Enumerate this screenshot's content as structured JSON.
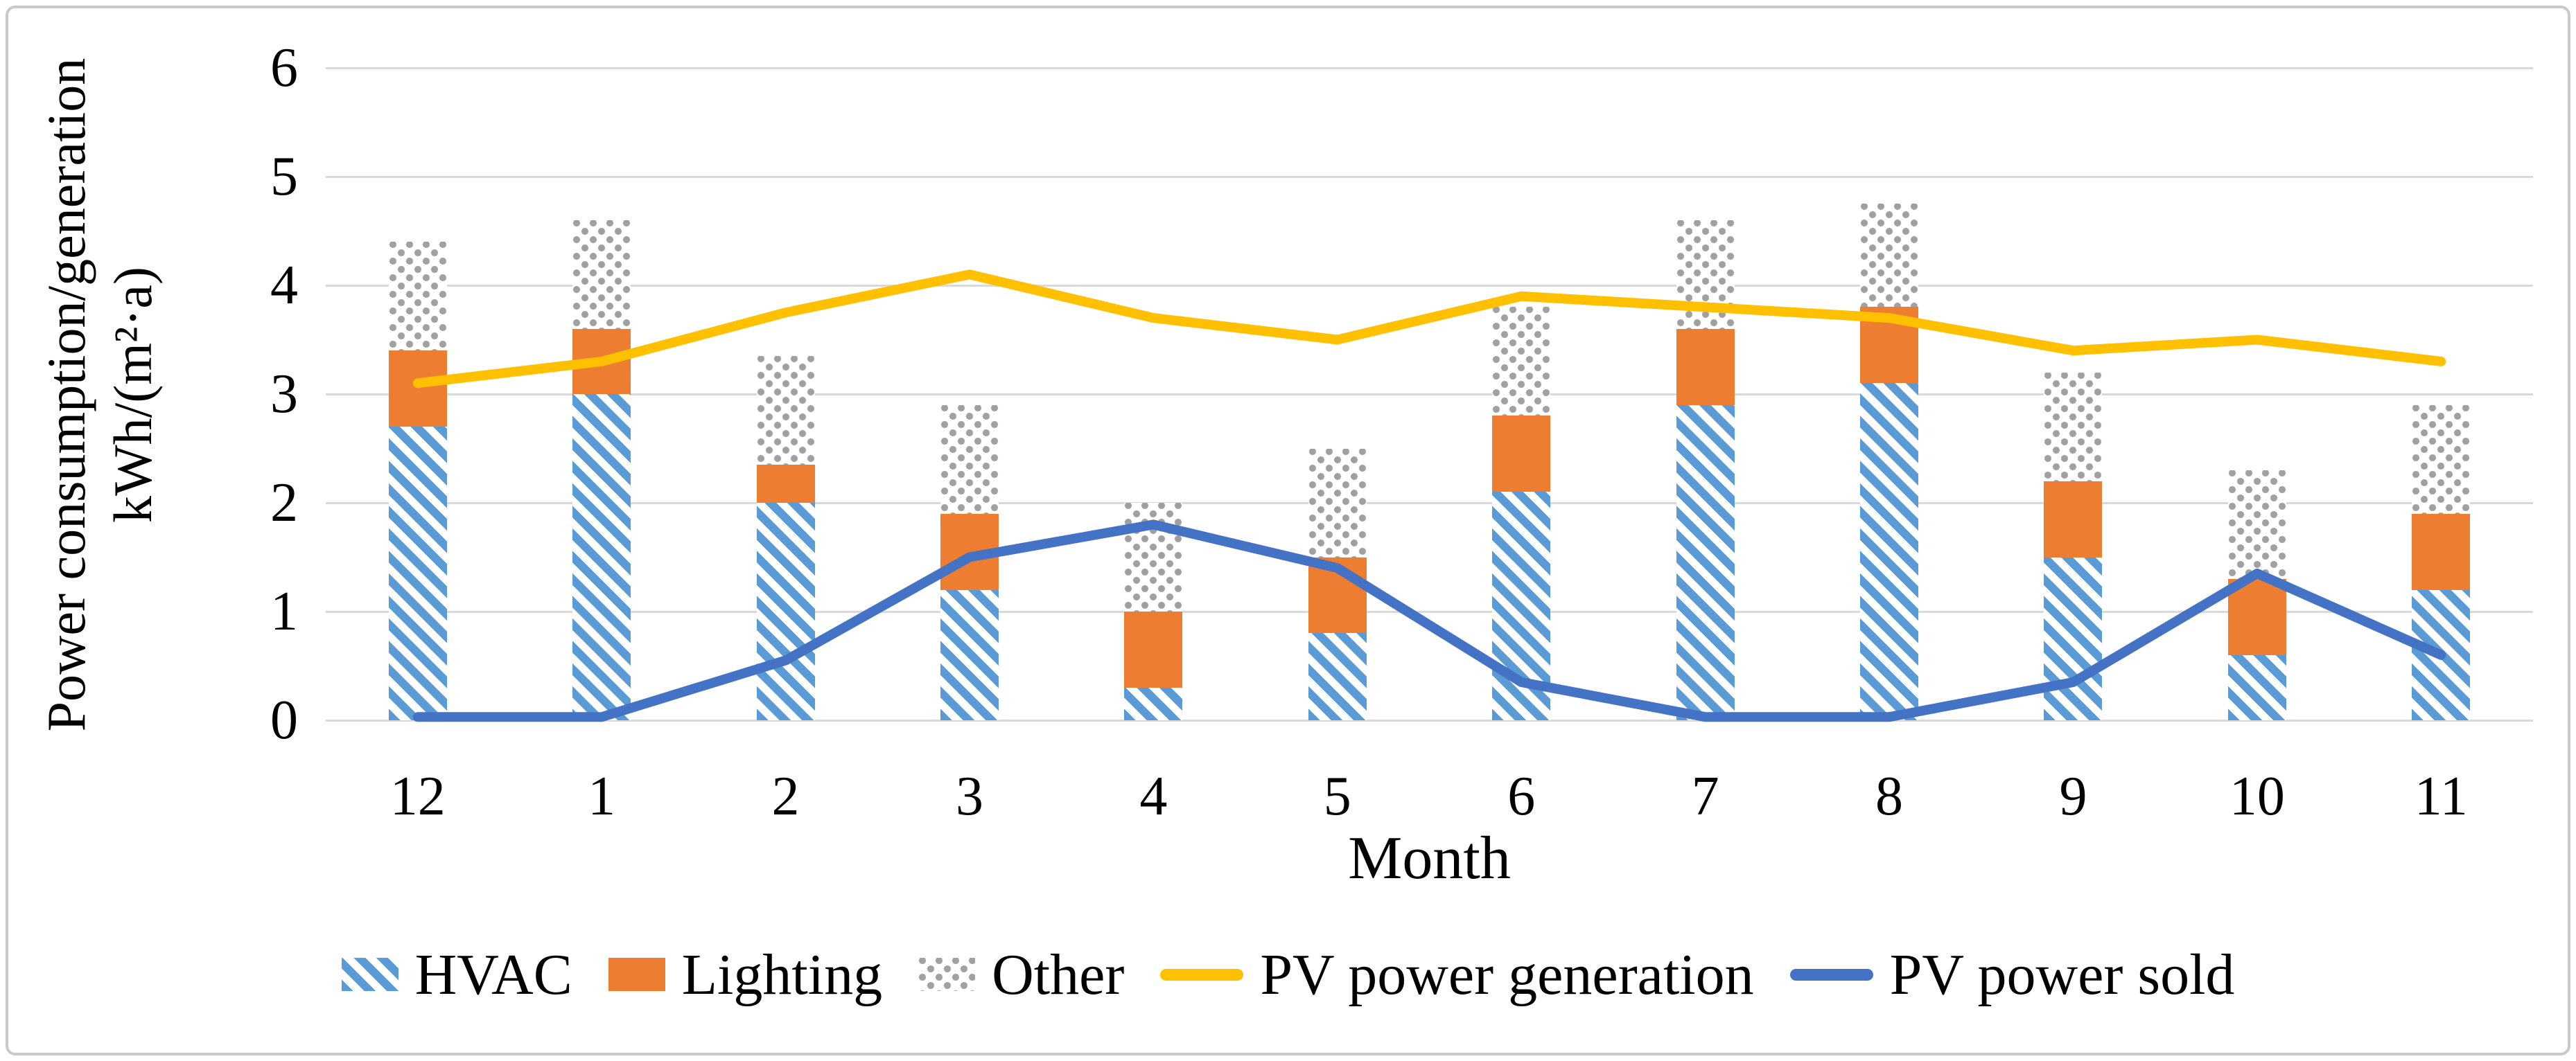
{
  "figure": {
    "y_axis_title_line1": "Power consumption/generation",
    "y_axis_title_line2": "kWh/(m²·a)",
    "x_axis_title": "Month"
  },
  "legend": {
    "items": [
      {
        "label": "HVAC",
        "marker": "striped-bar-swatch"
      },
      {
        "label": "Lighting",
        "marker": "solid-bar-swatch"
      },
      {
        "label": "Other",
        "marker": "dotted-bar-swatch"
      },
      {
        "label": "PV power generation",
        "marker": "line-swatch"
      },
      {
        "label": "PV power sold",
        "marker": "line-swatch"
      }
    ]
  },
  "colors": {
    "stripe_blue": "#5B9BD5",
    "lighting_orange": "#ED7D31",
    "dot_gray": "#a0a0a0",
    "pv_generation_yellow": "#FFC000",
    "pv_sold_blue": "#4472C4",
    "gridline_gray": "#D9D9D9"
  },
  "chart_data": {
    "type": "bar",
    "subtype": "stacked-bars-with-overlaid-lines",
    "categories": [
      "12",
      "1",
      "2",
      "3",
      "4",
      "5",
      "6",
      "7",
      "8",
      "9",
      "10",
      "11"
    ],
    "series": [
      {
        "name": "HVAC",
        "kind": "stacked-bar",
        "pattern": "diagonal-stripes",
        "values": [
          2.7,
          3.0,
          2.0,
          1.2,
          0.3,
          0.8,
          2.1,
          2.9,
          3.1,
          1.5,
          0.6,
          1.2
        ]
      },
      {
        "name": "Lighting",
        "kind": "stacked-bar",
        "pattern": "solid",
        "values": [
          0.7,
          0.6,
          0.35,
          0.7,
          0.7,
          0.7,
          0.7,
          0.7,
          0.7,
          0.7,
          0.7,
          0.7
        ]
      },
      {
        "name": "Other",
        "kind": "stacked-bar",
        "pattern": "dots",
        "values": [
          1.0,
          1.0,
          1.0,
          1.0,
          1.0,
          1.0,
          1.0,
          1.0,
          0.95,
          1.0,
          1.0,
          1.0
        ]
      },
      {
        "name": "PV power generation",
        "kind": "line",
        "values": [
          3.1,
          3.3,
          3.75,
          4.1,
          3.7,
          3.5,
          3.9,
          3.8,
          3.7,
          3.4,
          3.5,
          3.3
        ]
      },
      {
        "name": "PV power sold",
        "kind": "line",
        "values": [
          0.03,
          0.03,
          0.55,
          1.5,
          1.8,
          1.4,
          0.35,
          0.03,
          0.03,
          0.35,
          1.35,
          0.6
        ]
      }
    ],
    "title": "",
    "xlabel": "Month",
    "ylabel": "Power consumption/generation kWh/(m²·a)",
    "ylim": [
      0,
      6
    ],
    "y_ticks": [
      0,
      1,
      2,
      3,
      4,
      5,
      6
    ],
    "grid": "horizontal",
    "legend_position": "bottom"
  }
}
